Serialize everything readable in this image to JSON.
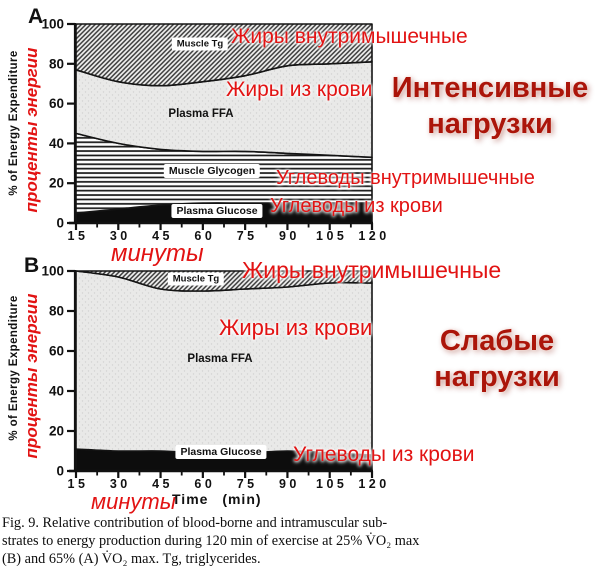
{
  "colors": {
    "annotation_red": "#e21313",
    "header_red": "#ab150a",
    "band_black": "#0d0d0d"
  },
  "chart_data": [
    {
      "type": "area",
      "stacked": true,
      "title": "A",
      "x": [
        15,
        30,
        45,
        60,
        75,
        90,
        105,
        120
      ],
      "xticks": [
        "15",
        "30",
        "45",
        "60",
        "75",
        "90",
        "105",
        "120"
      ],
      "yticks": [
        "0",
        "20",
        "40",
        "60",
        "80",
        "100"
      ],
      "ylim": [
        0,
        100
      ],
      "xlabel": "",
      "ylabel": "% of Energy Expenditure",
      "legend_position": "inside",
      "grid": false,
      "series": [
        {
          "name": "Plasma Glucose",
          "pattern": "black",
          "values": [
            5,
            7,
            9,
            10,
            10,
            10,
            10,
            10
          ]
        },
        {
          "name": "Muscle Glycogen",
          "pattern": "stripes",
          "values": [
            40,
            33,
            28,
            26,
            26,
            25,
            24,
            23
          ]
        },
        {
          "name": "Plasma FFA",
          "pattern": "stipple",
          "values": [
            32,
            31,
            32,
            35,
            38,
            44,
            46,
            48
          ]
        },
        {
          "name": "Muscle Tg",
          "pattern": "hatch",
          "values": [
            23,
            29,
            31,
            29,
            26,
            21,
            20,
            19
          ]
        }
      ]
    },
    {
      "type": "area",
      "stacked": true,
      "title": "B",
      "x": [
        15,
        30,
        45,
        60,
        75,
        90,
        105,
        120
      ],
      "xticks": [
        "15",
        "30",
        "45",
        "60",
        "75",
        "90",
        "105",
        "120"
      ],
      "yticks": [
        "0",
        "20",
        "40",
        "60",
        "80",
        "100"
      ],
      "ylim": [
        0,
        100
      ],
      "xlabel": "Time (min)",
      "ylabel": "% of Energy Expenditure",
      "legend_position": "inside",
      "grid": false,
      "series": [
        {
          "name": "Plasma Glucose",
          "pattern": "black",
          "values": [
            11,
            10,
            10,
            9,
            9,
            10,
            9,
            8
          ]
        },
        {
          "name": "Plasma FFA",
          "pattern": "stipple",
          "values": [
            89,
            87,
            81,
            81,
            82,
            82,
            85,
            86
          ]
        },
        {
          "name": "Muscle Tg",
          "pattern": "hatch",
          "values": [
            0,
            3,
            9,
            10,
            9,
            8,
            6,
            6
          ]
        }
      ]
    }
  ],
  "annotations": {
    "a": {
      "fat_intra": "Жиры внутримышечные",
      "fat_blood": "Жиры из крови",
      "carbs_intra": "Углеводы внутримышечные",
      "carbs_blood": "Углеводы из крови",
      "header_line1": "Интенсивные",
      "header_line2": "нагрузки",
      "minutes": "минуты",
      "percent_energy": "проценты энергии"
    },
    "b": {
      "fat_intra": "Жиры внутримышечные",
      "fat_blood": "Жиры из крови",
      "carbs_blood": "Углеводы из крови",
      "header_line1": "Слабые",
      "header_line2": "нагрузки",
      "minutes": "минуты",
      "percent_energy": "проценты энергии"
    }
  },
  "caption": {
    "line1": "Fig. 9. Relative contribution of blood-borne and intramuscular sub-",
    "line2": "strates to energy production during 120 min of exercise at 25% V̇O₂ max",
    "line3": "(B) and 65% (A) V̇O₂ max. Tg, triglycerides."
  }
}
